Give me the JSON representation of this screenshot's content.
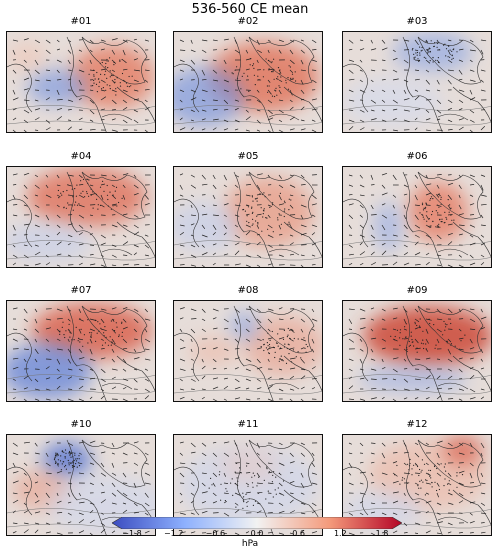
{
  "title": "536-560 CE mean",
  "panels": [
    {
      "label": "#01"
    },
    {
      "label": "#02"
    },
    {
      "label": "#03"
    },
    {
      "label": "#04"
    },
    {
      "label": "#05"
    },
    {
      "label": "#06"
    },
    {
      "label": "#07"
    },
    {
      "label": "#08"
    },
    {
      "label": "#09"
    },
    {
      "label": "#10"
    },
    {
      "label": "#11"
    },
    {
      "label": "#12"
    }
  ],
  "colorbar": {
    "ticks": [
      "−1.8",
      "−1.2",
      "−0.6",
      "0.0",
      "0.6",
      "1.2",
      "1.8"
    ],
    "unit": "hPa",
    "range": [
      -2.1,
      2.1
    ],
    "colors": [
      "#3b4cc0",
      "#f7f7f7",
      "#b40426"
    ]
  }
}
